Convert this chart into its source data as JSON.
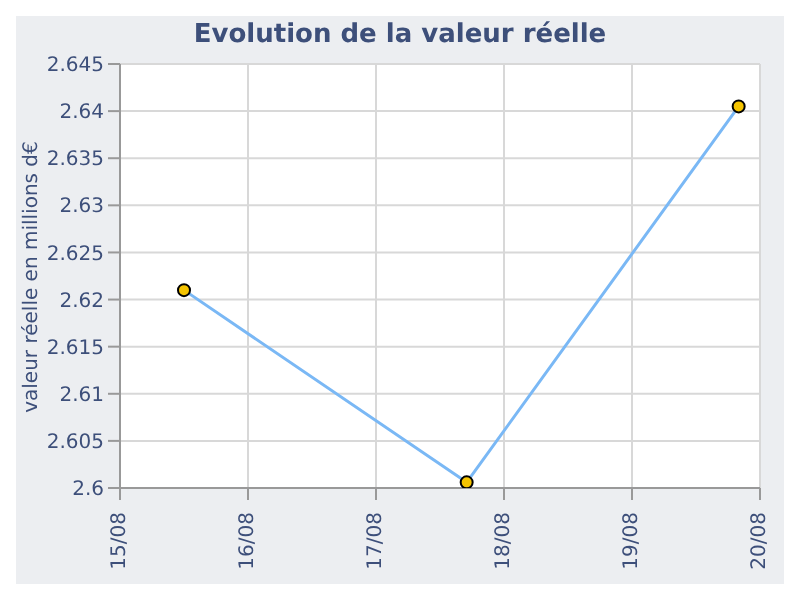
{
  "chart_data": {
    "type": "line",
    "title": "Evolution de la valeur réelle",
    "ylabel": "valeur réelle en millions d€",
    "x": [
      "--08-15T12:00",
      "--08-17T17:00",
      "--08-19T20:00"
    ],
    "series": [
      {
        "color": "#7ab8f5",
        "values": [
          2.621,
          2.6006,
          2.6405
        ]
      }
    ],
    "xlim": [
      "--08-15",
      "--08-20"
    ],
    "xticks": [
      {
        "value": "--08-15",
        "label": "15/08"
      },
      {
        "value": "--08-16",
        "label": "16/08"
      },
      {
        "value": "--08-17",
        "label": "17/08"
      },
      {
        "value": "--08-18",
        "label": "18/08"
      },
      {
        "value": "--08-19",
        "label": "19/08"
      },
      {
        "value": "--08-20",
        "label": "20/08"
      }
    ],
    "ylim": [
      2.6,
      2.645
    ],
    "yticks": [
      2.6,
      2.605,
      2.61,
      2.615,
      2.62,
      2.625,
      2.63,
      2.635,
      2.64,
      2.645
    ],
    "grid": true,
    "marker": "circle",
    "legend": false
  }
}
